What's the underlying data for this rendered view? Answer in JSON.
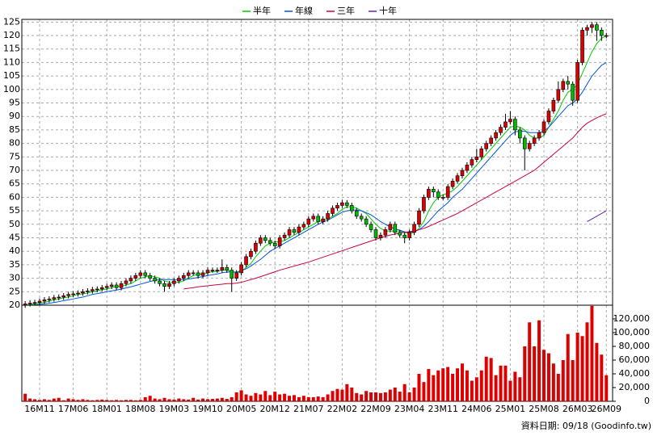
{
  "chart_data": [
    {
      "type": "candlestick",
      "legend": "top",
      "up_color": "#dd0000",
      "down_color": "#00bb00",
      "ylim": [
        20,
        126
      ],
      "yticks": [
        20,
        25,
        30,
        35,
        40,
        45,
        50,
        55,
        60,
        65,
        70,
        75,
        80,
        85,
        90,
        95,
        100,
        105,
        110,
        115,
        120,
        125
      ],
      "xlim": [
        -0.7,
        122.3
      ],
      "grid": true,
      "open": [
        20,
        20.5,
        20.8,
        21,
        21.5,
        22,
        22.3,
        22.8,
        23,
        23.5,
        24,
        24.2,
        24.5,
        25,
        25.3,
        25.8,
        26,
        26.5,
        27,
        27.5,
        26.5,
        28,
        29,
        30,
        31,
        32,
        31,
        30,
        29,
        28,
        27,
        28,
        29,
        30,
        31,
        32,
        32,
        31,
        32,
        33,
        33,
        33,
        34,
        33,
        30,
        32,
        35,
        38,
        40,
        43,
        45,
        44,
        43,
        42,
        45,
        46,
        48,
        47,
        49,
        50,
        52,
        53,
        51,
        52,
        54,
        56,
        57,
        58,
        57,
        55,
        53,
        52,
        50,
        48,
        45,
        46,
        48,
        50,
        47,
        46,
        45,
        47,
        50,
        55,
        60,
        63,
        62,
        60,
        60,
        64,
        66,
        68,
        70,
        72,
        74,
        75,
        78,
        80,
        82,
        84,
        86,
        88,
        89,
        85,
        82,
        78,
        80,
        82,
        84,
        88,
        92,
        96,
        100,
        103,
        102,
        96,
        110,
        122,
        123,
        124,
        122,
        120
      ],
      "high": [
        21.5,
        21.8,
        22,
        22.5,
        23,
        23.3,
        23.8,
        24,
        24.5,
        25,
        25.2,
        25.5,
        26,
        26.3,
        26.8,
        27,
        27.5,
        28,
        28.5,
        28.5,
        29,
        30,
        31,
        32,
        33,
        33,
        32,
        31,
        30,
        29,
        29,
        30,
        31,
        32,
        33,
        33,
        33,
        33,
        34,
        34,
        34,
        37,
        35,
        34,
        33,
        36,
        39,
        41,
        44,
        46,
        46,
        45,
        44,
        46,
        47,
        49,
        49,
        50,
        51,
        53,
        54,
        54,
        53,
        55,
        57,
        58,
        59,
        59,
        58,
        56,
        54,
        53,
        51,
        49,
        47,
        49,
        51,
        51,
        48,
        47,
        48,
        51,
        56,
        61,
        64,
        64,
        63,
        61,
        65,
        67,
        69,
        71,
        73,
        75,
        78,
        79,
        81,
        83,
        85,
        87,
        91,
        92,
        90,
        86,
        83,
        81,
        83,
        85,
        89,
        93,
        97,
        103,
        104,
        105,
        103,
        111,
        123,
        124,
        125,
        125,
        123,
        121
      ],
      "low": [
        19,
        19.5,
        19.8,
        20,
        20.5,
        21,
        21.3,
        21.8,
        22,
        22.5,
        23,
        23.2,
        23.5,
        24,
        24.3,
        24.8,
        25,
        25.5,
        26,
        25.5,
        25.5,
        27,
        28,
        29,
        30,
        30,
        29,
        28,
        27,
        25,
        26,
        27,
        28,
        29,
        30,
        31,
        30,
        30,
        31,
        32,
        32,
        32,
        32,
        25,
        29,
        31,
        34,
        37,
        39,
        42,
        43,
        42,
        41,
        41,
        44,
        45,
        46,
        46,
        48,
        49,
        51,
        50,
        50,
        51,
        53,
        55,
        56,
        56,
        54,
        52,
        51,
        49,
        47,
        44,
        44,
        45,
        47,
        46,
        45,
        43,
        44,
        46,
        49,
        54,
        59,
        60,
        59,
        59,
        59,
        63,
        65,
        67,
        69,
        71,
        73,
        74,
        77,
        79,
        81,
        83,
        85,
        87,
        83,
        80,
        70,
        77,
        79,
        81,
        83,
        87,
        91,
        95,
        99,
        100,
        94,
        95,
        109,
        120,
        121,
        118,
        118,
        119
      ],
      "close": [
        20.5,
        20.8,
        21,
        21.5,
        22,
        22.3,
        22.8,
        23,
        23.5,
        24,
        24.2,
        24.5,
        25,
        25.3,
        25.8,
        26,
        26.5,
        27,
        27.5,
        26.5,
        28,
        29,
        30,
        31,
        32,
        31,
        30,
        29,
        28,
        27,
        28,
        29,
        30,
        31,
        32,
        32,
        31,
        32,
        33,
        33,
        33,
        34,
        33,
        30,
        32,
        35,
        38,
        40,
        43,
        45,
        44,
        43,
        42,
        45,
        46,
        48,
        47,
        49,
        50,
        52,
        53,
        51,
        52,
        54,
        56,
        57,
        58,
        57,
        55,
        53,
        52,
        50,
        48,
        45,
        46,
        48,
        50,
        47,
        46,
        45,
        47,
        50,
        55,
        60,
        63,
        62,
        60,
        60,
        64,
        66,
        68,
        70,
        72,
        74,
        75,
        78,
        80,
        82,
        84,
        86,
        88,
        89,
        85,
        82,
        78,
        80,
        82,
        84,
        88,
        92,
        96,
        100,
        103,
        102,
        96,
        110,
        122,
        123,
        124,
        122,
        120,
        120
      ],
      "series": [
        {
          "name": "半年",
          "color": "#00cc00",
          "values": [
            20,
            20.2,
            20.5,
            20.8,
            21,
            21.5,
            22,
            22.3,
            22.8,
            23,
            23.5,
            24,
            24.2,
            24.5,
            25,
            25.3,
            25.8,
            26,
            26.5,
            27,
            27,
            27.5,
            28,
            29,
            30,
            30.5,
            31,
            30.5,
            30,
            29,
            28.5,
            28.5,
            28.5,
            29,
            30,
            31,
            31.5,
            31.5,
            32,
            32.5,
            32.5,
            33,
            33,
            32.5,
            32,
            32.5,
            34,
            35.5,
            38,
            40,
            42,
            43,
            43.5,
            43.5,
            44,
            45,
            46,
            47,
            48,
            49,
            50,
            51,
            51.5,
            52,
            53,
            54,
            55.5,
            56.5,
            56.5,
            56,
            55,
            54,
            52,
            50,
            48.5,
            47.5,
            47.5,
            47.5,
            47.5,
            47,
            46.5,
            47,
            48.5,
            51,
            55,
            58,
            60,
            61,
            61.5,
            62.5,
            64,
            66,
            68,
            70,
            72,
            74,
            76,
            78,
            80,
            82,
            84,
            86,
            86.5,
            86,
            85,
            83,
            82,
            82,
            83,
            86,
            89,
            92,
            96,
            99,
            100,
            102,
            106,
            110,
            114,
            117,
            119,
            120
          ]
        },
        {
          "name": "年線",
          "color": "#0055dd",
          "values": [
            20,
            20,
            20.1,
            20.3,
            20.5,
            20.7,
            21,
            21.3,
            21.7,
            22,
            22.3,
            22.7,
            23,
            23.5,
            24,
            24.3,
            24.6,
            25,
            25.3,
            25.6,
            26,
            26.4,
            26.8,
            27.3,
            27.8,
            28.3,
            28.8,
            29.2,
            29.5,
            29.5,
            29.5,
            29.5,
            29.5,
            29.5,
            29.7,
            30,
            30.3,
            30.6,
            31,
            31.3,
            31.6,
            32,
            32.3,
            32.3,
            32.3,
            32.8,
            33.5,
            34.5,
            35.8,
            37,
            38.5,
            40,
            41,
            42,
            43,
            44,
            45,
            46,
            47,
            48,
            49,
            50,
            50.8,
            51.5,
            52.5,
            53.5,
            54.5,
            55,
            55.3,
            55.3,
            55,
            54.3,
            53.5,
            52.3,
            51,
            50,
            49,
            48.3,
            47.8,
            47.2,
            47,
            47.3,
            48,
            49.3,
            51,
            53,
            55,
            56.5,
            58,
            60,
            61.5,
            63,
            65,
            67,
            69,
            71,
            73,
            75,
            77,
            79,
            81,
            83,
            84.3,
            84.5,
            84.5,
            84,
            84,
            84,
            84.5,
            86,
            88,
            90,
            92,
            94,
            95,
            96.5,
            99,
            102,
            105,
            107,
            109,
            110
          ]
        },
        {
          "name": "三年",
          "color": "#cc0044",
          "values": [
            null,
            null,
            null,
            null,
            null,
            null,
            null,
            null,
            null,
            null,
            null,
            null,
            null,
            null,
            null,
            null,
            null,
            null,
            null,
            null,
            null,
            null,
            null,
            null,
            null,
            null,
            null,
            null,
            null,
            null,
            null,
            null,
            null,
            26,
            26.3,
            26.5,
            26.8,
            27,
            27.2,
            27.4,
            27.6,
            27.8,
            28,
            28,
            28.2,
            28.5,
            29,
            29.5,
            30,
            30.6,
            31.2,
            31.8,
            32.4,
            33,
            33.5,
            34,
            34.5,
            35,
            35.5,
            36,
            36.6,
            37.2,
            37.8,
            38.4,
            39,
            39.6,
            40.2,
            40.8,
            41.4,
            42,
            42.6,
            43.2,
            43.8,
            44.4,
            45,
            45.5,
            46,
            46.4,
            46.8,
            47,
            47.3,
            47.6,
            48,
            48.5,
            49.2,
            50,
            50.8,
            51.6,
            52.4,
            53.2,
            54,
            55,
            56,
            57,
            58,
            59,
            60,
            61,
            62,
            63,
            64,
            65,
            66,
            67,
            68,
            69,
            70,
            71.5,
            73,
            74.5,
            76,
            77.5,
            79,
            80.5,
            82,
            84,
            86,
            87.5,
            88.5,
            89.5,
            90.3,
            91
          ]
        },
        {
          "name": "十年",
          "color": "#6622aa",
          "values": [
            null,
            null,
            null,
            null,
            null,
            null,
            null,
            null,
            null,
            null,
            null,
            null,
            null,
            null,
            null,
            null,
            null,
            null,
            null,
            null,
            null,
            null,
            null,
            null,
            null,
            null,
            null,
            null,
            null,
            null,
            null,
            null,
            null,
            null,
            null,
            null,
            null,
            null,
            null,
            null,
            null,
            null,
            null,
            null,
            null,
            null,
            null,
            null,
            null,
            null,
            null,
            null,
            null,
            null,
            null,
            null,
            null,
            null,
            null,
            null,
            null,
            null,
            null,
            null,
            null,
            null,
            null,
            null,
            null,
            null,
            null,
            null,
            null,
            null,
            null,
            null,
            null,
            null,
            null,
            null,
            null,
            null,
            null,
            null,
            null,
            null,
            null,
            null,
            null,
            null,
            null,
            null,
            null,
            null,
            null,
            null,
            null,
            null,
            null,
            null,
            null,
            null,
            null,
            null,
            null,
            null,
            null,
            null,
            null,
            null,
            null,
            null,
            null,
            null,
            null,
            null,
            null,
            51,
            52,
            53,
            54,
            55
          ]
        }
      ]
    },
    {
      "type": "bar",
      "color": "#dd0000",
      "ylim": [
        0,
        140000
      ],
      "yticks": [
        0,
        {
          "value": 20000,
          "label": "20,000"
        },
        {
          "value": 40000,
          "label": "40,000"
        },
        {
          "value": 60000,
          "label": "60,000"
        },
        {
          "value": 80000,
          "label": "80,000"
        },
        {
          "value": 100000,
          "label": "100,000"
        },
        {
          "value": 120000,
          "label": "120,000"
        }
      ],
      "xlim": [
        -0.7,
        122.3
      ],
      "xticks": [
        {
          "value": 3,
          "label": "16M11"
        },
        {
          "value": 10,
          "label": "17M06"
        },
        {
          "value": 17,
          "label": "18M01"
        },
        {
          "value": 24,
          "label": "18M08"
        },
        {
          "value": 31,
          "label": "19M03"
        },
        {
          "value": 38,
          "label": "19M10"
        },
        {
          "value": 45,
          "label": "20M05"
        },
        {
          "value": 52,
          "label": "20M12"
        },
        {
          "value": 59,
          "label": "21M07"
        },
        {
          "value": 66,
          "label": "22M02"
        },
        {
          "value": 73,
          "label": "22M09"
        },
        {
          "value": 80,
          "label": "23M04"
        },
        {
          "value": 87,
          "label": "23M11"
        },
        {
          "value": 94,
          "label": "24M06"
        },
        {
          "value": 101,
          "label": "25M01"
        },
        {
          "value": 108,
          "label": "25M08"
        },
        {
          "value": 115,
          "label": "26M03"
        },
        {
          "value": 121,
          "label": "26M09"
        }
      ],
      "values": [
        11000,
        4000,
        3000,
        2000,
        3000,
        2000,
        4000,
        5000,
        1500,
        4000,
        3000,
        2000,
        3000,
        2000,
        1500,
        2000,
        2500,
        2000,
        1500,
        2000,
        1500,
        2000,
        2000,
        1500,
        2000,
        6000,
        8000,
        4000,
        3000,
        5000,
        3000,
        2500,
        4000,
        3000,
        2500,
        5000,
        2500,
        4000,
        3000,
        3500,
        4000,
        5000,
        3500,
        6000,
        13000,
        16000,
        10000,
        8000,
        12000,
        10000,
        15000,
        9000,
        14000,
        10000,
        11000,
        8000,
        9000,
        6000,
        8000,
        6000,
        6000,
        7000,
        6000,
        10000,
        15000,
        18000,
        17000,
        25000,
        20000,
        12000,
        10000,
        15000,
        13000,
        13000,
        12000,
        13000,
        17000,
        20000,
        14000,
        25000,
        13000,
        20000,
        40000,
        28000,
        47000,
        38000,
        45000,
        48000,
        50000,
        40000,
        48000,
        55000,
        45000,
        30000,
        35000,
        45000,
        65000,
        63000,
        38000,
        52000,
        52000,
        30000,
        43000,
        35000,
        80000,
        115000,
        80000,
        118000,
        75000,
        70000,
        55000,
        40000,
        60000,
        98000,
        60000,
        100000,
        95000,
        115000,
        139000,
        85000,
        68000,
        38000
      ]
    },
    {
      "source": "資料日期: 09/18 (Goodinfo.tw)"
    }
  ]
}
